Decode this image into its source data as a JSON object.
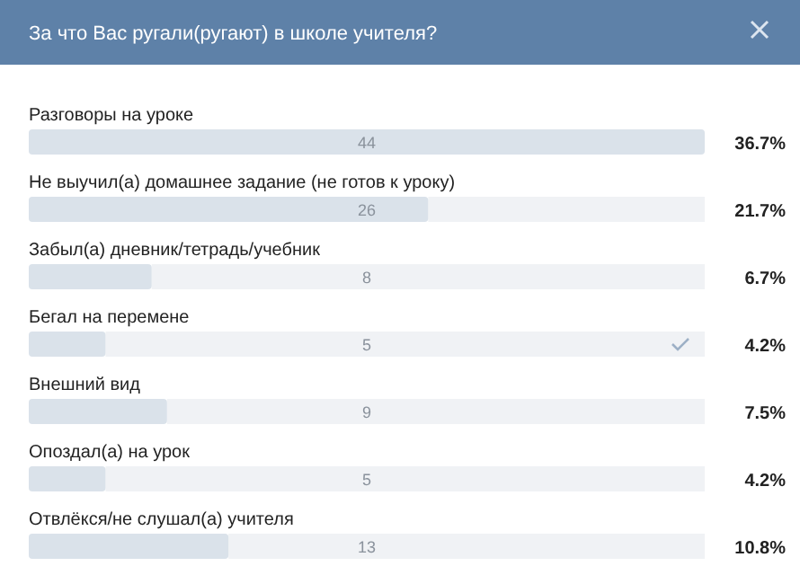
{
  "chart_data": {
    "type": "bar",
    "orientation": "horizontal",
    "title": "За что Вас ругали(ругают) в школе учителя?",
    "categories": [
      "Разговоры на уроке",
      "Не выучил(а) домашнее задание (не готов к уроку)",
      "Забыл(а) дневник/тетрадь/учебник",
      "Бегал на перемене",
      "Внешний вид",
      "Опоздал(а) на урок",
      "Отвлёкся/не слушал(а) учителя"
    ],
    "values": [
      44,
      26,
      8,
      5,
      9,
      5,
      13
    ],
    "color": "#dae2ea",
    "data_labels": true,
    "annotations": [
      "36.7%",
      "21.7%",
      "6.7%",
      "4.2%",
      "7.5%",
      "4.2%",
      "10.8%"
    ]
  }
}
